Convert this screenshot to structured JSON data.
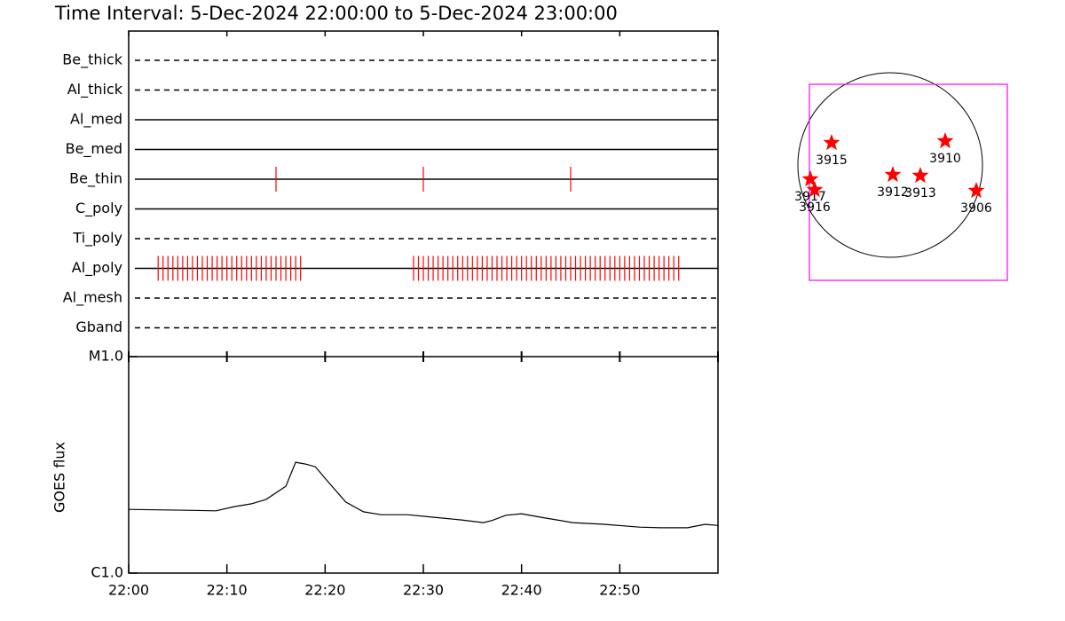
{
  "chart_data": [
    {
      "type": "timeline",
      "title": "Time Interval:  5-Dec-2024 22:00:00 to  5-Dec-2024 23:00:00",
      "xlim": [
        0,
        60
      ],
      "xticks": [
        0,
        10,
        20,
        30,
        40,
        50,
        60
      ],
      "color": "#ff0000",
      "filters": [
        {
          "name": "Be_thick",
          "dashed": true,
          "times": []
        },
        {
          "name": "Al_thick",
          "dashed": true,
          "times": []
        },
        {
          "name": "Al_med",
          "dashed": false,
          "times": []
        },
        {
          "name": "Be_med",
          "dashed": false,
          "times": []
        },
        {
          "name": "Be_thin",
          "dashed": false,
          "times": [
            15,
            30,
            45
          ]
        },
        {
          "name": "C_poly",
          "dashed": false,
          "times": []
        },
        {
          "name": "Ti_poly",
          "dashed": true,
          "times": []
        },
        {
          "name": "Al_poly",
          "dashed": false,
          "times": [
            3,
            3.5,
            4,
            4.5,
            5,
            5.5,
            6,
            6.5,
            7,
            7.5,
            8,
            8.5,
            9,
            9.5,
            10,
            10.5,
            11,
            11.5,
            12,
            12.5,
            13,
            13.5,
            14,
            14.5,
            15,
            15.5,
            16,
            16.5,
            17,
            17.5,
            29,
            29.5,
            30,
            30.5,
            31,
            31.5,
            32,
            32.5,
            33,
            33.5,
            34,
            34.5,
            35,
            35.5,
            36,
            36.5,
            37,
            37.5,
            38,
            38.5,
            39,
            39.5,
            40,
            40.5,
            41,
            41.5,
            42,
            42.5,
            43,
            43.5,
            44,
            44.5,
            45,
            45.5,
            46,
            46.5,
            47,
            47.5,
            48,
            48.5,
            49,
            49.5,
            50,
            50.5,
            51,
            51.5,
            52,
            52.5,
            53,
            53.5,
            54,
            54.5,
            55,
            55.5,
            56
          ]
        },
        {
          "name": "Al_mesh",
          "dashed": true,
          "times": []
        },
        {
          "name": "Gband",
          "dashed": true,
          "times": []
        }
      ]
    },
    {
      "type": "line",
      "ylabel": "GOES flux",
      "log": true,
      "color": "#000000",
      "xlim": [
        0,
        60
      ],
      "xticks": [
        {
          "value": 0,
          "label": "22:00"
        },
        {
          "value": 10,
          "label": "22:10"
        },
        {
          "value": 20,
          "label": "22:20"
        },
        {
          "value": 30,
          "label": "22:30"
        },
        {
          "value": 40,
          "label": "22:40"
        },
        {
          "value": 50,
          "label": "22:50"
        }
      ],
      "ylim": [
        1e-06,
        1e-05
      ],
      "yticks": [
        {
          "value": 1e-06,
          "label": "C1.0"
        },
        {
          "value": 1e-05,
          "label": "M1.0"
        }
      ],
      "x": [
        0,
        5.9,
        8.9,
        10.8,
        12.5,
        14.0,
        16.0,
        17.0,
        18.0,
        19.0,
        20.3,
        22.1,
        23.9,
        25.7,
        28.4,
        31.1,
        33.9,
        36.1,
        37.0,
        38.4,
        40.0,
        42.0,
        45.2,
        48.4,
        52.0,
        54.2,
        56.9,
        58.7,
        60
      ],
      "values": [
        1.97e-06,
        1.95e-06,
        1.94e-06,
        2.03e-06,
        2.09e-06,
        2.19e-06,
        2.52e-06,
        3.25e-06,
        3.19e-06,
        3.1e-06,
        2.64e-06,
        2.13e-06,
        1.92e-06,
        1.86e-06,
        1.86e-06,
        1.81e-06,
        1.76e-06,
        1.71e-06,
        1.75e-06,
        1.85e-06,
        1.88e-06,
        1.81e-06,
        1.71e-06,
        1.68e-06,
        1.63e-06,
        1.62e-06,
        1.62e-06,
        1.68e-06,
        1.66e-06
      ]
    },
    {
      "type": "map",
      "color": "#ff0000",
      "box_color": "#ff00ff",
      "regions": [
        "3915",
        "3910",
        "3912",
        "3913",
        "3906",
        "3917",
        "3916"
      ]
    }
  ]
}
